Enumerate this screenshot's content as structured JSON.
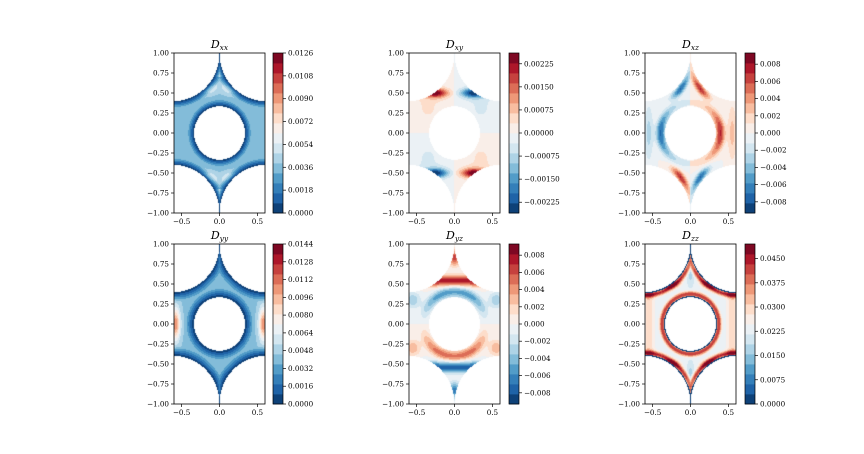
{
  "chart_data": [
    {
      "type": "heatmap",
      "title_main": "D",
      "title_sub": "xx",
      "xlim": [
        -0.6,
        0.6
      ],
      "ylim": [
        -1.0,
        1.0
      ],
      "xticks": [
        "−0.5",
        "0.0",
        "0.5"
      ],
      "yticks": [
        "1.00",
        "0.75",
        "0.50",
        "0.25",
        "0.00",
        "−0.25",
        "−0.50",
        "−0.75",
        "−1.00"
      ],
      "colorbar": {
        "min": 0.0,
        "max": 0.0126,
        "ticks": [
          "0.0126",
          "0.0108",
          "0.0090",
          "0.0072",
          "0.0054",
          "0.0036",
          "0.0018",
          "0.0000"
        ]
      },
      "pattern": "xx"
    },
    {
      "type": "heatmap",
      "title_main": "D",
      "title_sub": "xy",
      "xlim": [
        -0.6,
        0.6
      ],
      "ylim": [
        -1.0,
        1.0
      ],
      "xticks": [
        "−0.5",
        "0.0",
        "0.5"
      ],
      "yticks": [
        "1.00",
        "0.75",
        "0.50",
        "0.25",
        "0.00",
        "−0.25",
        "−0.50",
        "−0.75",
        "−1.00"
      ],
      "colorbar": {
        "min": -0.0026,
        "max": 0.0026,
        "ticks": [
          "0.00225",
          "0.00150",
          "0.00075",
          "0.00000",
          "−0.00075",
          "−0.00150",
          "−0.00225"
        ]
      },
      "pattern": "xy"
    },
    {
      "type": "heatmap",
      "title_main": "D",
      "title_sub": "xz",
      "xlim": [
        -0.6,
        0.6
      ],
      "ylim": [
        -1.0,
        1.0
      ],
      "xticks": [
        "−0.5",
        "0.0",
        "0.5"
      ],
      "yticks": [
        "1.00",
        "0.75",
        "0.50",
        "0.25",
        "0.00",
        "−0.25",
        "−0.50",
        "−0.75",
        "−1.00"
      ],
      "colorbar": {
        "min": -0.0093,
        "max": 0.0093,
        "ticks": [
          "0.008",
          "0.006",
          "0.004",
          "0.002",
          "0.000",
          "−0.002",
          "−0.004",
          "−0.006",
          "−0.008"
        ]
      },
      "pattern": "xz"
    },
    {
      "type": "heatmap",
      "title_main": "D",
      "title_sub": "yy",
      "xlim": [
        -0.6,
        0.6
      ],
      "ylim": [
        -1.0,
        1.0
      ],
      "xticks": [
        "−0.5",
        "0.0",
        "0.5"
      ],
      "yticks": [
        "1.00",
        "0.75",
        "0.50",
        "0.25",
        "0.00",
        "−0.25",
        "−0.50",
        "−0.75",
        "−1.00"
      ],
      "colorbar": {
        "min": 0.0,
        "max": 0.0144,
        "ticks": [
          "0.0144",
          "0.0128",
          "0.0112",
          "0.0096",
          "0.0080",
          "0.0064",
          "0.0048",
          "0.0032",
          "0.0016",
          "0.0000"
        ]
      },
      "pattern": "yy"
    },
    {
      "type": "heatmap",
      "title_main": "D",
      "title_sub": "yz",
      "xlim": [
        -0.6,
        0.6
      ],
      "ylim": [
        -1.0,
        1.0
      ],
      "xticks": [
        "−0.5",
        "0.0",
        "0.5"
      ],
      "yticks": [
        "1.00",
        "0.75",
        "0.50",
        "0.25",
        "0.00",
        "−0.25",
        "−0.50",
        "−0.75",
        "−1.00"
      ],
      "colorbar": {
        "min": -0.0093,
        "max": 0.0093,
        "ticks": [
          "0.008",
          "0.006",
          "0.004",
          "0.002",
          "0.000",
          "−0.002",
          "−0.004",
          "−0.006",
          "−0.008"
        ]
      },
      "pattern": "yz"
    },
    {
      "type": "heatmap",
      "title_main": "D",
      "title_sub": "zz",
      "xlim": [
        -0.6,
        0.6
      ],
      "ylim": [
        -1.0,
        1.0
      ],
      "xticks": [
        "−0.5",
        "0.0",
        "0.5"
      ],
      "yticks": [
        "1.00",
        "0.75",
        "0.50",
        "0.25",
        "0.00",
        "−0.25",
        "−0.50",
        "−0.75",
        "−1.00"
      ],
      "colorbar": {
        "min": 0.0,
        "max": 0.0495,
        "ticks": [
          "0.0450",
          "0.0375",
          "0.0300",
          "0.0225",
          "0.0150",
          "0.0075",
          "0.0000"
        ]
      },
      "pattern": "zz"
    }
  ],
  "colormap": {
    "name": "RdBu_r",
    "low": "#053061",
    "mid": "#f7f7f7",
    "high": "#67001f"
  }
}
